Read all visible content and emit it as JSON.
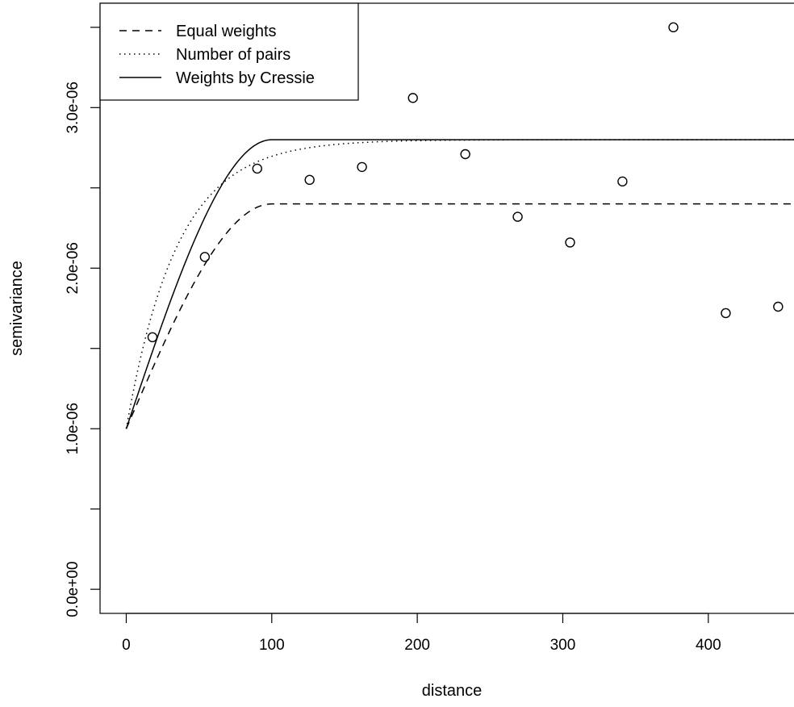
{
  "chart_data": {
    "type": "scatter",
    "xlabel": "distance",
    "ylabel": "semivariance",
    "xlim": [
      -18,
      460
    ],
    "ylim": [
      -1.5e-07,
      3.65e-06
    ],
    "x_ticks": [
      0,
      100,
      200,
      300,
      400
    ],
    "x_tick_labels": [
      "0",
      "100",
      "200",
      "300",
      "400"
    ],
    "y_ticks": [
      0,
      5e-07,
      1e-06,
      1.5e-06,
      2e-06,
      2.5e-06,
      3e-06,
      3.5e-06
    ],
    "y_tick_labels": [
      "0.0e+00",
      "",
      "1.0e-06",
      "",
      "2.0e-06",
      "",
      "3.0e-06",
      ""
    ],
    "grid": false,
    "legend_position": "top-left",
    "points": {
      "x": [
        18,
        54,
        90,
        126,
        162,
        197,
        233,
        269,
        305,
        341,
        376,
        412,
        448
      ],
      "y": [
        1.57e-06,
        2.07e-06,
        2.62e-06,
        2.55e-06,
        2.63e-06,
        3.06e-06,
        2.71e-06,
        2.32e-06,
        2.16e-06,
        2.54e-06,
        3.5e-06,
        1.72e-06,
        1.76e-06
      ]
    },
    "series": [
      {
        "name": "Equal weights",
        "dash": "9,7",
        "model": {
          "type": "spherical",
          "nugget": 1e-06,
          "sill": 2.4e-06,
          "range": 100
        }
      },
      {
        "name": "Number of pairs",
        "dash": "1.5,4.5",
        "model": {
          "type": "exponential",
          "nugget": 1e-06,
          "sill": 2.8e-06,
          "range": 35
        }
      },
      {
        "name": "Weights by Cressie",
        "dash": "",
        "model": {
          "type": "spherical",
          "nugget": 1e-06,
          "sill": 2.8e-06,
          "range": 100
        }
      }
    ]
  }
}
